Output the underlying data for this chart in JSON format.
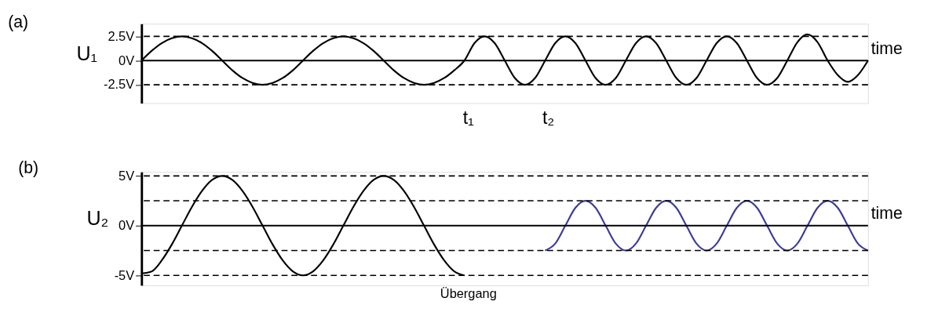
{
  "chart_data": [
    {
      "type": "line",
      "title": "(a)",
      "ylabel": "U₁",
      "ylim": [
        -4.4,
        3.8
      ],
      "tick_labels": "y",
      "grid": false,
      "marker": "none",
      "line_style": "solid",
      "categories": [
        null,
        null,
        null,
        null,
        null,
        null,
        null,
        null,
        null,
        null,
        null,
        null,
        null,
        null,
        null,
        null,
        null,
        null,
        null,
        null,
        null,
        null,
        null,
        null,
        null,
        null,
        null,
        null,
        null,
        null,
        null,
        null,
        null,
        null,
        null,
        null,
        null,
        null,
        null,
        null,
        null,
        null,
        null,
        null,
        null,
        null,
        null,
        null,
        null,
        null,
        null,
        null,
        null,
        null,
        null,
        null,
        null,
        null,
        null,
        null,
        null,
        null,
        null,
        null,
        null,
        null,
        null,
        null,
        null,
        null,
        null,
        null,
        null
      ],
      "yticks": [
        {
          "value": 2.5,
          "label": "2.5V"
        },
        {
          "value": 0,
          "label": "0V"
        },
        {
          "value": -2.5,
          "label": "-2.5V"
        }
      ],
      "series": [
        {
          "color": "#000000",
          "values": [
            0,
            1,
            1.8,
            2.3,
            2.5,
            2.3,
            1.8,
            1,
            0,
            -1,
            -1.8,
            -2.3,
            -2.5,
            -2.3,
            -1.8,
            -1,
            0,
            1,
            1.8,
            2.3,
            2.5,
            2.3,
            1.8,
            1,
            0,
            -1,
            -1.8,
            -2.3,
            -2.5,
            -2.3,
            -1.8,
            -1,
            0,
            1.8,
            2.5,
            1.8,
            0,
            -1.8,
            -2.5,
            -1.8,
            0,
            1.8,
            2.5,
            1.8,
            0,
            -1.8,
            -2.5,
            -1.8,
            0,
            1.8,
            2.5,
            1.8,
            0,
            -1.8,
            -2.5,
            -1.8,
            0,
            1.8,
            2.5,
            1.8,
            0,
            -1.8,
            -2.5,
            -1.8,
            0,
            1.9,
            2.7,
            1.9,
            0,
            -1.5,
            -2.2,
            -1.5,
            0
          ]
        }
      ],
      "ref_lines": [
        {
          "axis": "y",
          "value": 0,
          "line_style": "solid"
        },
        {
          "axis": "y",
          "value": 2.5,
          "line_style": "dashed"
        },
        {
          "axis": "y",
          "value": -2.5,
          "line_style": "dashed"
        }
      ],
      "annotations": [
        "time",
        "t₁",
        "t₂"
      ]
    },
    {
      "type": "line",
      "title": "(b)",
      "ylabel": "U₂",
      "ylim": [
        -6,
        5.4
      ],
      "tick_labels": "y",
      "grid": false,
      "marker": "none",
      "line_style": "solid",
      "categories": [
        null,
        null,
        null,
        null,
        null,
        null,
        null,
        null,
        null,
        null,
        null,
        null,
        null,
        null,
        null,
        null,
        null,
        null,
        null,
        null,
        null,
        null,
        null,
        null,
        null,
        null,
        null,
        null,
        null,
        null,
        null,
        null,
        null,
        null,
        null,
        null,
        null,
        null,
        null,
        null,
        null,
        null,
        null,
        null,
        null,
        null,
        null,
        null,
        null,
        null,
        null,
        null,
        null,
        null,
        null,
        null,
        null,
        null,
        null,
        null,
        null,
        null,
        null,
        null,
        null,
        null,
        null,
        null,
        null,
        null,
        null,
        null,
        null
      ],
      "yticks": [
        {
          "value": 5,
          "label": "5V"
        },
        {
          "value": 0,
          "label": "0V"
        },
        {
          "value": -5,
          "label": "-5V"
        }
      ],
      "series": [
        {
          "color": "#000000",
          "values": [
            -4.8,
            -4.6,
            -3.5,
            -1.9,
            0,
            1.9,
            3.5,
            4.6,
            5,
            4.6,
            3.5,
            1.9,
            0,
            -1.9,
            -3.5,
            -4.6,
            -5,
            -4.6,
            -3.5,
            -1.9,
            0,
            1.9,
            3.5,
            4.6,
            5,
            4.6,
            3.5,
            1.9,
            0,
            -1.9,
            -3.5,
            -4.6,
            -5,
            null,
            null,
            null,
            null,
            null,
            null,
            null,
            null,
            null,
            null,
            null,
            null,
            null,
            null,
            null,
            null,
            null,
            null,
            null,
            null,
            null,
            null,
            null,
            null,
            null,
            null,
            null,
            null,
            null,
            null,
            null,
            null,
            null,
            null,
            null,
            null,
            null,
            null,
            null,
            null
          ]
        },
        {
          "color": "#3a3a9a",
          "values": [
            null,
            null,
            null,
            null,
            null,
            null,
            null,
            null,
            null,
            null,
            null,
            null,
            null,
            null,
            null,
            null,
            null,
            null,
            null,
            null,
            null,
            null,
            null,
            null,
            null,
            null,
            null,
            null,
            null,
            null,
            null,
            null,
            null,
            null,
            null,
            null,
            null,
            null,
            null,
            null,
            -2.5,
            -1.8,
            0,
            1.8,
            2.5,
            1.8,
            0,
            -1.8,
            -2.5,
            -1.8,
            0,
            1.8,
            2.5,
            1.8,
            0,
            -1.8,
            -2.5,
            -1.8,
            0,
            1.8,
            2.5,
            1.8,
            0,
            -1.8,
            -2.5,
            -1.8,
            0,
            1.8,
            2.5,
            1.8,
            0,
            -1.8,
            -2.5
          ]
        }
      ],
      "ref_lines": [
        {
          "axis": "y",
          "value": 0,
          "line_style": "solid"
        },
        {
          "axis": "y",
          "value": 5,
          "line_style": "dashed"
        },
        {
          "axis": "y",
          "value": 2.5,
          "line_style": "dashed"
        },
        {
          "axis": "y",
          "value": -2.5,
          "line_style": "dashed"
        },
        {
          "axis": "y",
          "value": -5,
          "line_style": "dashed"
        }
      ],
      "annotations": [
        "time",
        "Übergang"
      ]
    }
  ]
}
